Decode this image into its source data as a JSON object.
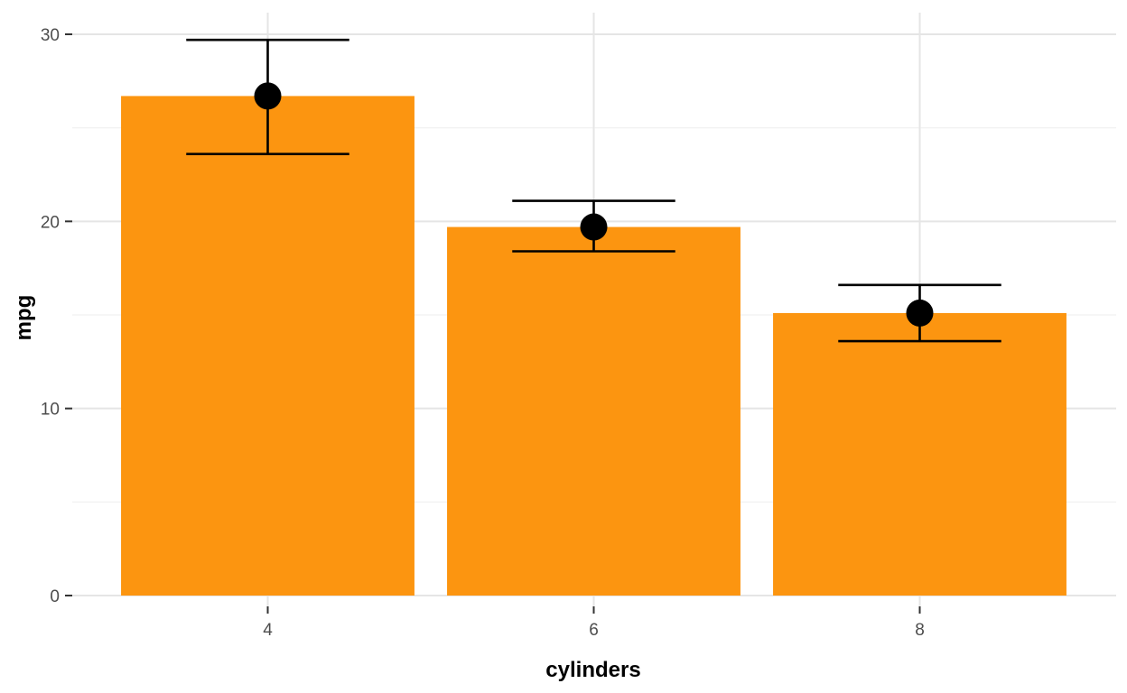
{
  "chart_data": {
    "type": "bar",
    "categories": [
      "4",
      "6",
      "8"
    ],
    "values": [
      26.7,
      19.7,
      15.1
    ],
    "error_lower": [
      23.6,
      18.4,
      13.6
    ],
    "error_upper": [
      29.7,
      21.1,
      16.6
    ],
    "xlabel": "cylinders",
    "ylabel": "mpg",
    "ylim": [
      0,
      30
    ],
    "yticks": [
      0,
      10,
      20,
      30
    ],
    "grid": true,
    "bar_color": "#FC9510",
    "point_color": "#000000"
  }
}
